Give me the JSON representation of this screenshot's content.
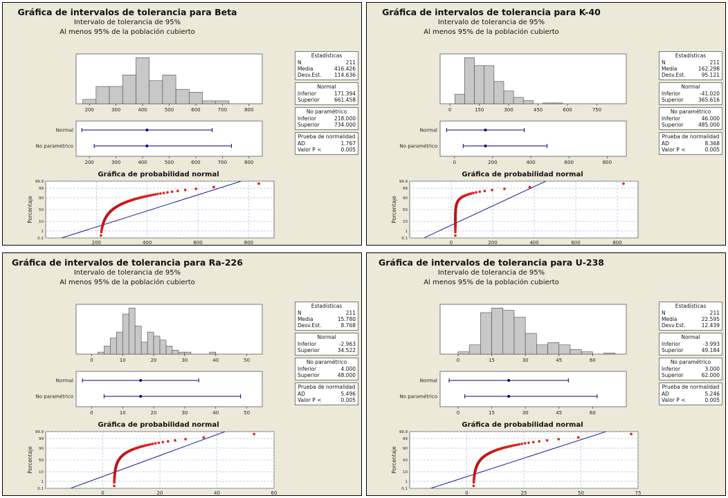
{
  "panels": [
    {
      "id": "beta",
      "title": "Gráfica de intervalos de tolerancia para Beta",
      "subtitle1": "Intervalo de tolerancia de 95%",
      "subtitle2": "Al menos 95% de la población cubierto",
      "stats": {
        "header": "Estadísticas",
        "n_label": "N",
        "n": "211",
        "media_label": "Media",
        "media": "416.426",
        "desv_label": "Desv.Est.",
        "desv": "114.636",
        "normal_header": "Normal",
        "inferior_label": "Inferior",
        "normal_inf": "171.394",
        "superior_label": "Superior",
        "normal_sup": "661.458",
        "np_header": "No paramétrico",
        "np_inf": "218.000",
        "np_sup": "734.000",
        "test_header": "Prueba de normalidad",
        "ad_label": "AD",
        "ad": "1.767",
        "p_label": "Valor P <",
        "p": "0.005"
      },
      "interval_labels": [
        "Normal",
        "No paramétrico"
      ],
      "prob_title": "Gráfica de probabilidad normal",
      "prob_ylabel": "Porcentaje",
      "chart_data": {
        "type": "bar",
        "histogram": {
          "xlim": [
            150,
            850
          ],
          "xticks": [
            200,
            300,
            400,
            500,
            600,
            700,
            800
          ],
          "bin_edges": [
            175,
            225,
            275,
            325,
            375,
            425,
            475,
            525,
            575,
            625,
            675,
            725
          ],
          "counts": [
            3,
            12,
            12,
            20,
            32,
            16,
            20,
            10,
            8,
            2,
            2
          ]
        },
        "intervals": {
          "xlim": [
            150,
            850
          ],
          "xticks": [
            200,
            300,
            400,
            500,
            600,
            700,
            800
          ],
          "mean": 416.426,
          "normal": [
            171.394,
            661.458
          ],
          "nonparametric": [
            218.0,
            734.0
          ]
        },
        "probability_plot": {
          "xlim": [
            0,
            900
          ],
          "xticks": [
            200,
            400,
            600,
            800
          ],
          "mean": 416.426,
          "sd": 114.636,
          "n": 211,
          "min": 218,
          "max": 840,
          "skew": 0.9,
          "yticks": [
            "0.1",
            "1",
            "10",
            "50",
            "90",
            "99",
            "99.9"
          ]
        }
      }
    },
    {
      "id": "k40",
      "title": "Gráfica de intervalos de tolerancia para K-40",
      "subtitle1": "Intervalo de tolerancia de 95%",
      "subtitle2": "Al menos 95% de la población cubierto",
      "stats": {
        "header": "Estadísticas",
        "n_label": "N",
        "n": "211",
        "media_label": "Media",
        "media": "162.298",
        "desv_label": "Desv.Est.",
        "desv": "95.121",
        "normal_header": "Normal",
        "inferior_label": "Inferior",
        "normal_inf": "-41.020",
        "superior_label": "Superior",
        "normal_sup": "365.616",
        "np_header": "No paramétrico",
        "np_inf": "46.000",
        "np_sup": "485.000",
        "test_header": "Prueba de normalidad",
        "ad_label": "AD",
        "ad": "8.368",
        "p_label": "Valor P <",
        "p": "0.005"
      },
      "interval_labels": [
        "Normal",
        "No paramétrico"
      ],
      "prob_title": "Gráfica de probabilidad normal",
      "prob_ylabel": "Porcentaje",
      "chart_data": {
        "type": "bar",
        "histogram": {
          "xlim": [
            -50,
            900
          ],
          "xticks": [
            0,
            150,
            300,
            450,
            600,
            750
          ],
          "bin_edges": [
            25,
            75,
            125,
            175,
            225,
            275,
            325,
            375,
            425,
            475,
            525,
            575,
            625,
            675,
            725,
            775,
            825,
            875
          ],
          "counts": [
            12,
            58,
            48,
            48,
            28,
            16,
            8,
            4,
            0,
            1,
            1,
            0,
            0,
            0,
            0,
            0,
            0
          ]
        },
        "intervals": {
          "xlim": [
            -75,
            900
          ],
          "xticks": [
            0,
            200,
            400,
            600,
            800
          ],
          "mean": 162.298,
          "normal": [
            -41.02,
            365.616
          ],
          "nonparametric": [
            46.0,
            485.0
          ]
        },
        "probability_plot": {
          "xlim": [
            -200,
            900
          ],
          "xticks": [
            0,
            200,
            400,
            600,
            800
          ],
          "mean": 162.298,
          "sd": 95.121,
          "n": 211,
          "min": 20,
          "max": 830,
          "skew": 2.2,
          "yticks": [
            "0.1",
            "1",
            "10",
            "50",
            "90",
            "99",
            "99.9"
          ]
        }
      }
    },
    {
      "id": "ra226",
      "title": "Gráfica de intervalos de tolerancia para Ra-226",
      "subtitle1": "Intervalo de tolerancia de 95%",
      "subtitle2": "Al menos 95% de la población cubierto",
      "stats": {
        "header": "Estadísticas",
        "n_label": "N",
        "n": "211",
        "media_label": "Media",
        "media": "15.780",
        "desv_label": "Desv.Est.",
        "desv": "8.768",
        "normal_header": "Normal",
        "inferior_label": "Inferior",
        "normal_inf": "-2.963",
        "superior_label": "Superior",
        "normal_sup": "34.522",
        "np_header": "No paramétrico",
        "np_inf": "4.000",
        "np_sup": "48.000",
        "test_header": "Prueba de normalidad",
        "ad_label": "AD",
        "ad": "5.496",
        "p_label": "Valor P <",
        "p": "0.005"
      },
      "interval_labels": [
        "Normal",
        "No paramétrico"
      ],
      "prob_title": "Gráfica de probabilidad normal",
      "prob_ylabel": "Porcentaje",
      "chart_data": {
        "type": "bar",
        "histogram": {
          "xlim": [
            -5,
            55
          ],
          "xticks": [
            0,
            10,
            20,
            30,
            40,
            50
          ],
          "bin_edges": [
            2,
            4,
            6,
            8,
            10,
            12,
            14,
            16,
            18,
            20,
            22,
            24,
            26,
            28,
            30,
            32,
            34,
            36,
            38,
            40,
            42,
            44,
            46,
            48,
            50,
            52
          ],
          "counts": [
            2,
            8,
            16,
            22,
            40,
            46,
            28,
            12,
            22,
            18,
            14,
            8,
            4,
            2,
            2,
            0,
            0,
            0,
            2,
            0,
            0,
            0,
            0,
            0,
            0
          ]
        },
        "intervals": {
          "xlim": [
            -5,
            55
          ],
          "xticks": [
            0,
            10,
            20,
            30,
            40,
            50
          ],
          "mean": 15.78,
          "normal": [
            -2.963,
            34.522
          ],
          "nonparametric": [
            4.0,
            48.0
          ]
        },
        "probability_plot": {
          "xlim": [
            -20,
            60
          ],
          "xticks": [
            0,
            20,
            40,
            60
          ],
          "mean": 15.78,
          "sd": 8.768,
          "n": 211,
          "min": 4,
          "max": 53,
          "skew": 1.2,
          "yticks": [
            "0.1",
            "1",
            "10",
            "50",
            "90",
            "99",
            "99.9"
          ]
        }
      }
    },
    {
      "id": "u238",
      "title": "Gráfica de intervalos de tolerancia para U-238",
      "subtitle1": "Intervalo de tolerancia de 95%",
      "subtitle2": "Al menos 95% de la población cubierto",
      "stats": {
        "header": "Estadísticas",
        "n_label": "N",
        "n": "211",
        "media_label": "Media",
        "media": "22.595",
        "desv_label": "Desv.Est.",
        "desv": "12.439",
        "normal_header": "Normal",
        "inferior_label": "Inferior",
        "normal_inf": "-3.993",
        "superior_label": "Superior",
        "normal_sup": "49.184",
        "np_header": "No paramétrico",
        "np_inf": "3.000",
        "np_sup": "62.000",
        "test_header": "Prueba de normalidad",
        "ad_label": "AD",
        "ad": "5.246",
        "p_label": "Valor P <",
        "p": "0.005"
      },
      "interval_labels": [
        "Normal",
        "No paramétrico"
      ],
      "prob_title": "Gráfica de probabilidad normal",
      "prob_ylabel": "Porcentaje",
      "chart_data": {
        "type": "bar",
        "histogram": {
          "xlim": [
            -8,
            75
          ],
          "xticks": [
            0,
            15,
            30,
            45,
            60
          ],
          "bin_edges": [
            0,
            5,
            10,
            15,
            20,
            25,
            30,
            35,
            40,
            45,
            50,
            55,
            60,
            65,
            70
          ],
          "counts": [
            2,
            8,
            36,
            40,
            38,
            32,
            18,
            8,
            10,
            8,
            4,
            2,
            0,
            1
          ]
        },
        "intervals": {
          "xlim": [
            -8,
            75
          ],
          "xticks": [
            0,
            15,
            30,
            45,
            60
          ],
          "mean": 22.595,
          "normal": [
            -3.993,
            49.184
          ],
          "nonparametric": [
            3.0,
            62.0
          ]
        },
        "probability_plot": {
          "xlim": [
            -25,
            75
          ],
          "xticks": [
            0,
            25,
            50,
            75
          ],
          "mean": 22.595,
          "sd": 12.439,
          "n": 211,
          "min": 3,
          "max": 72,
          "skew": 1.1,
          "yticks": [
            "0.1",
            "1",
            "10",
            "50",
            "90",
            "99",
            "99.9"
          ]
        }
      }
    }
  ],
  "colors": {
    "panel_bg": "#ece9d8",
    "bar_fill": "#c8c8c8",
    "interval_line": "#00008b",
    "ref_line": "#1a1a8c",
    "points": "#e8221e",
    "grid": "#9fb4d2"
  }
}
